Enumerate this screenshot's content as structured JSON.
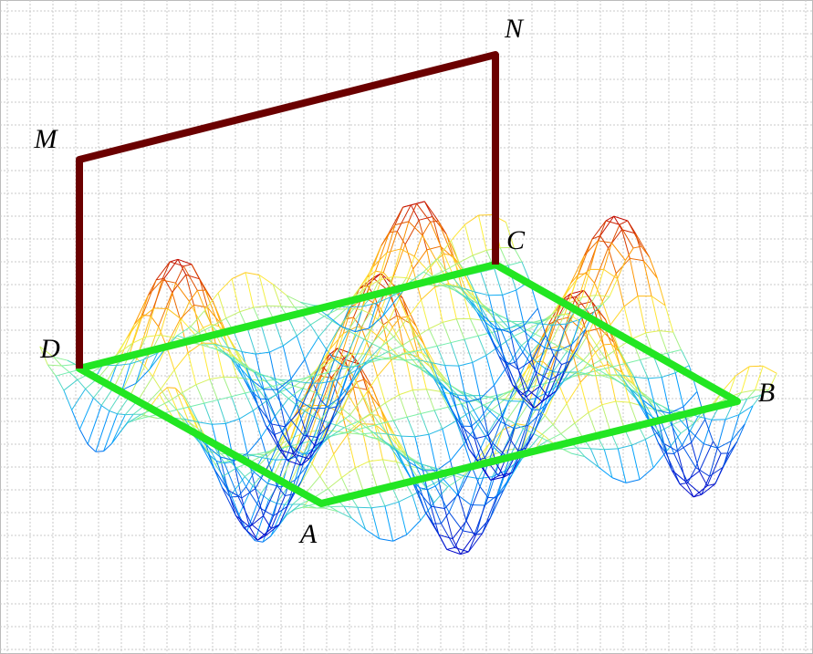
{
  "points": {
    "N": "N",
    "M": "M",
    "C": "C",
    "D": "D",
    "B": "B",
    "A": "A"
  }
}
